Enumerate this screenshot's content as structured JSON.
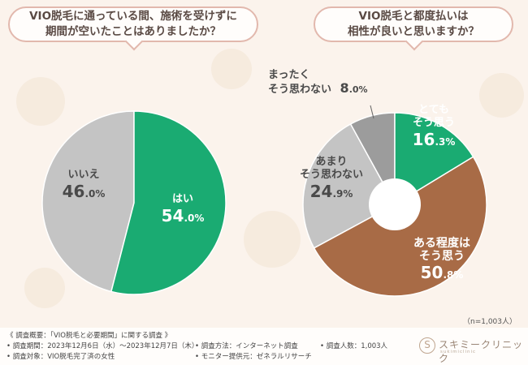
{
  "questions": {
    "left": [
      "VIO脱毛に通っている間、施術を受けずに",
      "期間が空いたことはありましたか？"
    ],
    "right": [
      "VIO脱毛と都度払いは",
      "相性が良いと思いますか？"
    ]
  },
  "chart_data": [
    {
      "type": "pie",
      "title": "VIO脱毛に通っている間、施術を受けずに期間が空いたことはありましたか？",
      "slices": [
        {
          "label": "はい",
          "value": 54.0,
          "color": "#1aab72"
        },
        {
          "label": "いいえ",
          "value": 46.0,
          "color": "#c4c4c4"
        }
      ]
    },
    {
      "type": "pie",
      "title": "VIO脱毛と都度払いは相性が良いと思いますか？",
      "donut": true,
      "slices": [
        {
          "label": "とても\nそう思う",
          "value": 16.3,
          "color": "#1aab72"
        },
        {
          "label": "ある程度は\nそう思う",
          "value": 50.8,
          "color": "#a86b46"
        },
        {
          "label": "あまり\nそう思わない",
          "value": 24.9,
          "color": "#c4c4c4"
        },
        {
          "label": "まったく\nそう思わない",
          "value": 8.0,
          "color": "#9c9c9c"
        }
      ]
    }
  ],
  "labels": {
    "hai": {
      "t": "はい",
      "v": "54",
      "d": ".0%"
    },
    "iie": {
      "t": "いいえ",
      "v": "46",
      "d": ".0%"
    },
    "totemo": {
      "t1": "とても",
      "t2": "そう思う",
      "v": "16",
      "d": ".3%"
    },
    "aru": {
      "t1": "ある程度は",
      "t2": "そう思う",
      "v": "50",
      "d": ".8%"
    },
    "amari": {
      "t1": "あまり",
      "t2": "そう思わない",
      "v": "24",
      "d": ".9%"
    },
    "mattaku": {
      "t1": "まったく",
      "t2": "そう思わない",
      "v": "8",
      "d": ".0%"
    }
  },
  "sample_size": "（n=1,003人）",
  "footer": {
    "title": "《 調査概要：「VIO脱毛と必要期間」に関する調査 》",
    "period": "• 調査期間：2023年12月6日（水）～2023年12月7日（木）",
    "target": "• 調査対象：VIO脱毛完了済の女性",
    "method": "• 調査方法：インターネット調査",
    "monitor": "• モニター提供元：ゼネラルリサーチ",
    "count": "• 調査人数：1,003人"
  },
  "logo": {
    "name": "スキミークリニック",
    "sub": "sukimiclinic",
    "mark": "S"
  }
}
